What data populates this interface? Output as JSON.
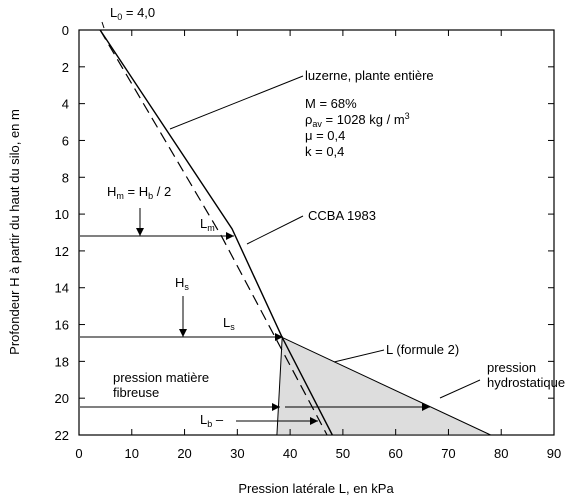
{
  "chart_data": {
    "type": "line",
    "xlabel": "Pression latérale L, en kPa",
    "ylabel": "Profondeur H  à partir du haut du silo, en m",
    "xlim": [
      0,
      90
    ],
    "ylim": [
      0,
      22
    ],
    "y_inverted": true,
    "x_ticks": [
      0,
      10,
      20,
      30,
      40,
      50,
      60,
      70,
      80,
      90
    ],
    "y_ticks": [
      0,
      2,
      4,
      6,
      8,
      10,
      12,
      14,
      16,
      18,
      20,
      22
    ],
    "series": [
      {
        "name": "luzerne, plante entière",
        "style": "solid",
        "points": [
          [
            4.0,
            0
          ],
          [
            29,
            10.8
          ],
          [
            38.5,
            16.7
          ],
          [
            48,
            22
          ]
        ]
      },
      {
        "name": "CCBA 1983",
        "style": "dashed",
        "points": [
          [
            4.0,
            0
          ],
          [
            27,
            11.2
          ],
          [
            47,
            22
          ]
        ]
      },
      {
        "name": "L (formule 2)",
        "style": "solid",
        "points": [
          [
            38.5,
            16.7
          ],
          [
            37.5,
            22
          ],
          [
            78,
            22
          ],
          [
            38.5,
            16.7
          ]
        ]
      }
    ],
    "annotations": {
      "l0": "L",
      "l0_sub": "0",
      "l0_value": " = 4,0",
      "luzerne": "luzerne, plante entière",
      "m_param": "M = 68%",
      "rho_sym": "ρ",
      "rho_sub": "av",
      "rho_value": " = 1028 kg / m",
      "rho_sup": "3",
      "mu_param": "μ = 0,4",
      "k_param": "k = 0,4",
      "hm_a": "H",
      "hm_a_sub": "m",
      "hm_mid": "  =  H",
      "hm_b_sub": "b",
      "hm_end": " / 2",
      "lm": "L",
      "lm_sub": "m",
      "ccba": "CCBA 1983",
      "hs": "H",
      "hs_sub": "s",
      "ls": "L",
      "ls_sub": "s",
      "lformule": "L  (formule 2)",
      "pm1": "pression matière",
      "pm2": "fibreuse",
      "ph1": "pression",
      "ph2": "hydrostatique",
      "lb": "L",
      "lb_sub": "b",
      "lb_dash": " –"
    }
  }
}
